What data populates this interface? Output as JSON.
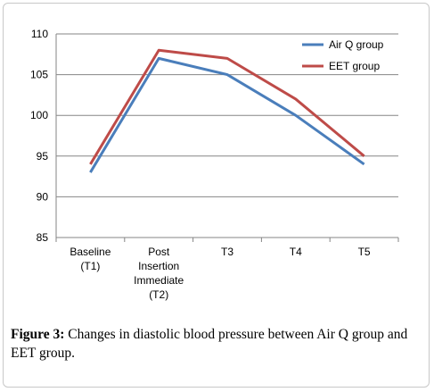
{
  "chart_data": {
    "type": "line",
    "categories": [
      [
        "Baseline",
        "(T1)"
      ],
      [
        "Post",
        "Insertion",
        "Immediate",
        "(T2)"
      ],
      [
        "T3"
      ],
      [
        "T4"
      ],
      [
        "T5"
      ]
    ],
    "ylim": [
      85,
      110
    ],
    "yticks": [
      85,
      90,
      95,
      100,
      105,
      110
    ],
    "series": [
      {
        "name": "Air Q group",
        "color": "#4a7ebb",
        "values": [
          93,
          107,
          105,
          100,
          94
        ]
      },
      {
        "name": "EET group",
        "color": "#be4b48",
        "values": [
          94,
          108,
          107,
          102,
          95
        ]
      }
    ],
    "legend_position": "top-right",
    "grid": true
  },
  "caption": {
    "label": "Figure 3:",
    "text": " Changes in diastolic blood pressure between Air Q group and EET group."
  }
}
